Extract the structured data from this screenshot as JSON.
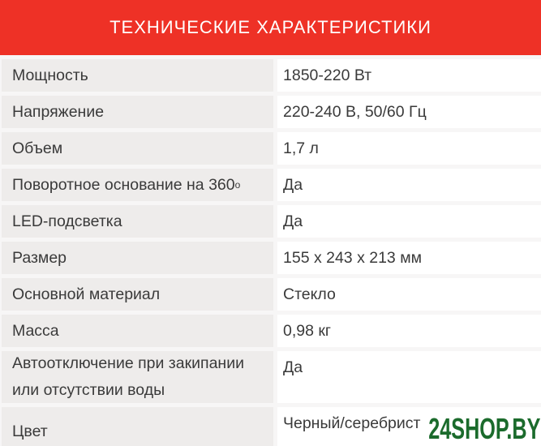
{
  "header": {
    "title": "ТЕХНИЧЕСКИЕ ХАРАКТЕРИСТИКИ",
    "bg_color": "#ee3126",
    "text_color": "#ffffff"
  },
  "table": {
    "label_bg_color": "#eeeceb",
    "value_bg_color": "#ffffff",
    "text_color": "#3a3a3a",
    "rows": [
      {
        "label": "Мощность",
        "value": "1850-220 Вт"
      },
      {
        "label": "Напряжение",
        "value": "220-240 В, 50/60 Гц"
      },
      {
        "label": "Объем",
        "value": "1,7 л"
      },
      {
        "label": "Поворотное основание на 360",
        "label_superscript": "о",
        "value": "Да"
      },
      {
        "label": "LED-подсветка",
        "value": "Да"
      },
      {
        "label": "Размер",
        "value": "155 х 243 х 213 мм"
      },
      {
        "label": "Основной материал",
        "value": "Стекло"
      },
      {
        "label": "Масса",
        "value": "0,98 кг"
      },
      {
        "label": "Автоотключение при закипании или отсутствии воды",
        "value": "Да",
        "tall": true
      },
      {
        "label": "Цвет",
        "value": "Черный/серебрист",
        "clipped": true
      }
    ]
  },
  "watermark": {
    "text": "24SHOP.BY",
    "color": "#1b6b2c"
  }
}
